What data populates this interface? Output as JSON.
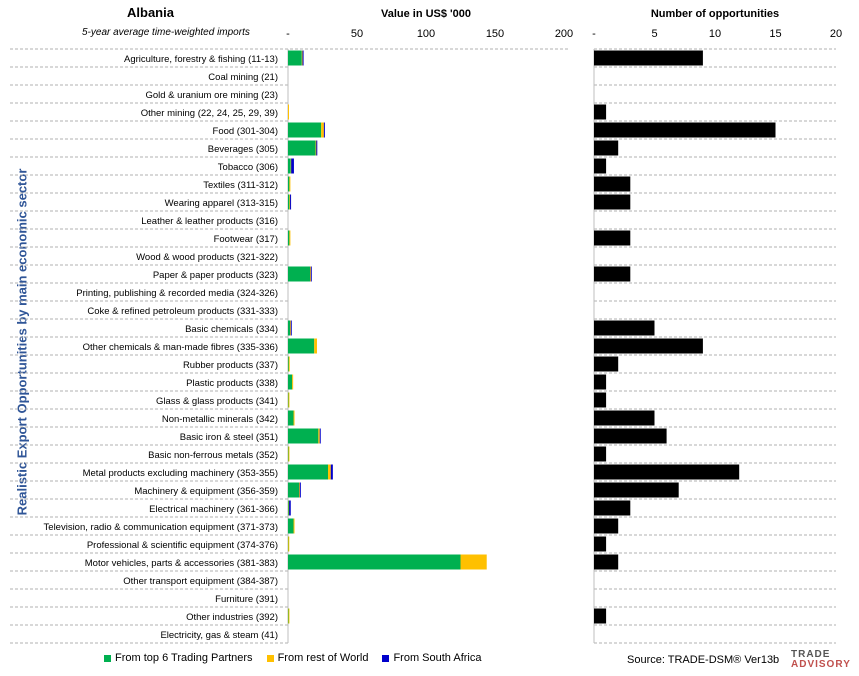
{
  "header": {
    "country": "Albania",
    "subtitle": "5-year average time-weighted imports",
    "left_title": "Value in US$ '000",
    "right_title": "Number of opportunities",
    "y_axis_label": "Realistic Export Opportunities by main economic sector"
  },
  "footer": {
    "source": "Source: TRADE-DSM®  Ver13b",
    "logo_line1": "TRADE",
    "logo_line2": "ADVISORY"
  },
  "colors": {
    "top6": "#00b050",
    "rest": "#ffc000",
    "sa": "#0000cc",
    "opps": "#000000"
  },
  "chart_data": [
    {
      "type": "bar",
      "orientation": "horizontal",
      "stacked": true,
      "title": "Value in US$ '000",
      "xlim": [
        0,
        200
      ],
      "x_ticks": [
        "-",
        "50",
        "100",
        "150",
        "200"
      ],
      "categories": [
        "Agriculture, forestry & fishing (11-13)",
        "Coal mining (21)",
        "Gold & uranium ore mining (23)",
        "Other mining (22, 24, 25, 29, 39)",
        "Food (301-304)",
        "Beverages (305)",
        "Tobacco (306)",
        "Textiles (311-312)",
        "Wearing apparel (313-315)",
        "Leather & leather products (316)",
        "Footwear (317)",
        "Wood & wood products (321-322)",
        "Paper & paper products (323)",
        "Printing, publishing & recorded media (324-326)",
        "Coke & refined petroleum products (331-333)",
        "Basic chemicals (334)",
        "Other chemicals & man-made fibres (335-336)",
        "Rubber products (337)",
        "Plastic products (338)",
        "Glass & glass products (341)",
        "Non-metallic minerals (342)",
        "Basic iron & steel (351)",
        "Basic non-ferrous metals (352)",
        "Metal products excluding machinery (353-355)",
        "Machinery & equipment (356-359)",
        "Electrical machinery (361-366)",
        "Television, radio & communication equipment (371-373)",
        "Professional & scientific equipment (374-376)",
        "Motor vehicles, parts & accessories (381-383)",
        "Other transport equipment (384-387)",
        "Furniture (391)",
        "Other industries (392)",
        "Electricity, gas & steam (41)"
      ],
      "series": [
        {
          "name": "From top 6 Trading Partners",
          "values": [
            10,
            0,
            0,
            0,
            24,
            20,
            2,
            1,
            1,
            0,
            1,
            0,
            16,
            0,
            0,
            1.5,
            19,
            0.5,
            3,
            0.3,
            4,
            22,
            0.3,
            29,
            8,
            0.5,
            4,
            0.2,
            125,
            0,
            0,
            0.3,
            0
          ]
        },
        {
          "name": "From rest of World",
          "values": [
            0.5,
            0,
            0,
            0.5,
            2,
            0.5,
            0.3,
            0.5,
            0.5,
            0,
            0.5,
            0,
            0.5,
            0,
            0,
            0.5,
            2,
            0.5,
            0.5,
            0.2,
            0.5,
            1,
            0.2,
            2,
            0.5,
            0.3,
            0.5,
            0.1,
            19,
            0,
            0,
            0.2,
            0
          ]
        },
        {
          "name": "From South Africa",
          "values": [
            0.8,
            0,
            0,
            0,
            0.2,
            0.2,
            2,
            0,
            0.2,
            0,
            0,
            0,
            0.2,
            0,
            0,
            0.3,
            0,
            0,
            0,
            0,
            0,
            0.2,
            0,
            1.5,
            0.8,
            1.2,
            0,
            0,
            0,
            0,
            0,
            0,
            0
          ]
        }
      ]
    },
    {
      "type": "bar",
      "orientation": "horizontal",
      "title": "Number of opportunities",
      "xlim": [
        0,
        20
      ],
      "x_ticks": [
        "-",
        "5",
        "10",
        "15",
        "20"
      ],
      "series": [
        {
          "values": [
            9,
            0,
            0,
            1,
            15,
            2,
            1,
            3,
            3,
            0,
            3,
            0,
            3,
            0,
            0,
            5,
            9,
            2,
            1,
            1,
            5,
            6,
            1,
            12,
            7,
            3,
            2,
            1,
            2,
            0,
            0,
            1,
            0
          ]
        }
      ]
    }
  ]
}
